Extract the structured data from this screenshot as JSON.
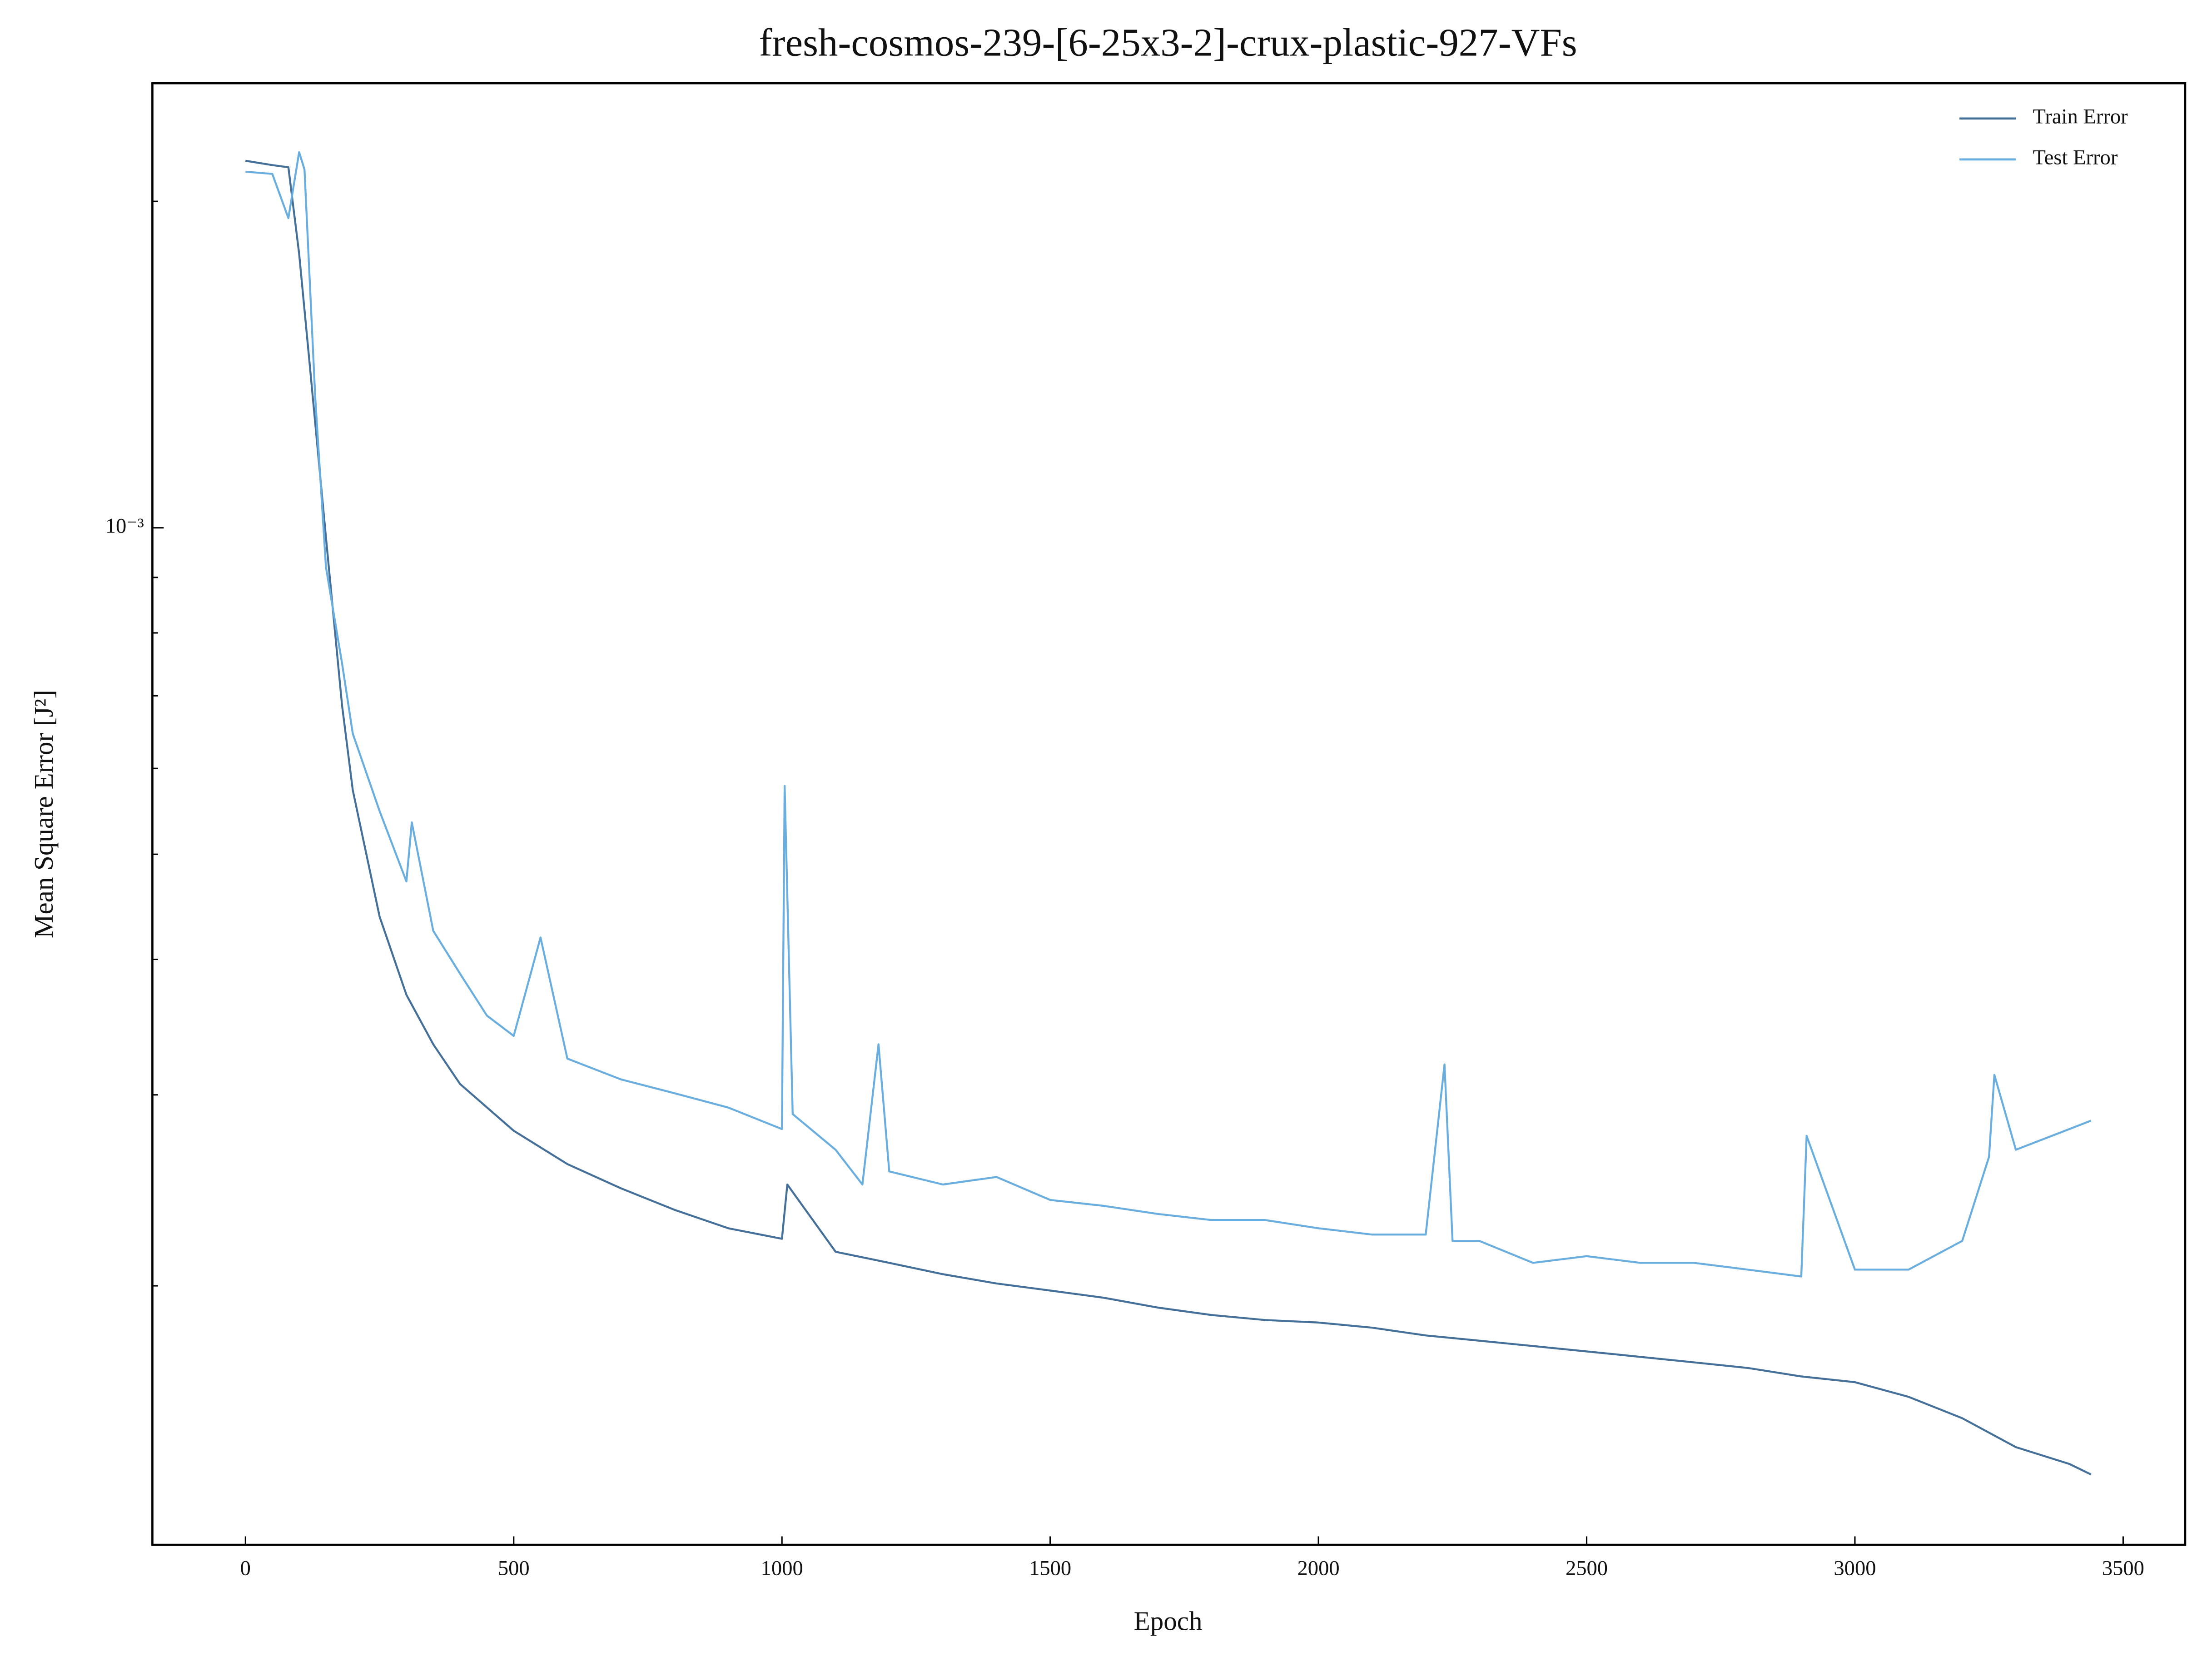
{
  "chart_data": {
    "type": "line",
    "title": "fresh-cosmos-239-[6-25x3-2]-crux-plastic-927-VFs",
    "xlabel": "Epoch",
    "ylabel": "Mean Square Error [J²]",
    "xlim": [
      -173.5,
      3615.6
    ],
    "xticks": [
      0,
      500,
      1000,
      1500,
      2000,
      2500,
      3000,
      3500
    ],
    "ylim": [
      0.0001154,
      0.00257
    ],
    "yscale": "log",
    "yticks": [
      {
        "value": 0.001,
        "label": "10⁻³"
      }
    ],
    "yminor_ticks": [
      0.0002,
      0.0003,
      0.0004,
      0.0005,
      0.0006,
      0.0007,
      0.0008,
      0.0009,
      0.002
    ],
    "legend": "upper right",
    "series": [
      {
        "name": "Train Error",
        "color": "#44709a",
        "x": [
          0,
          50,
          80,
          100,
          120,
          150,
          180,
          200,
          250,
          300,
          350,
          400,
          500,
          600,
          700,
          800,
          900,
          1000,
          1010,
          1100,
          1200,
          1300,
          1400,
          1500,
          1600,
          1700,
          1800,
          1900,
          2000,
          2100,
          2200,
          2300,
          2400,
          2500,
          2600,
          2700,
          2800,
          2900,
          3000,
          3100,
          3200,
          3300,
          3400,
          3440
        ],
        "values": [
          0.00218,
          0.00216,
          0.00215,
          0.00179,
          0.00141,
          0.00098,
          0.000686,
          0.000573,
          0.000438,
          0.000371,
          0.000334,
          0.000307,
          0.000278,
          0.000259,
          0.000246,
          0.000235,
          0.000226,
          0.000221,
          0.000248,
          0.000215,
          0.00021,
          0.000205,
          0.000201,
          0.000198,
          0.000195,
          0.000191,
          0.000188,
          0.000186,
          0.000185,
          0.000183,
          0.00018,
          0.000178,
          0.000176,
          0.000174,
          0.000172,
          0.00017,
          0.000168,
          0.000165,
          0.000163,
          0.000158,
          0.000151,
          0.000142,
          0.000137,
          0.000134
        ]
      },
      {
        "name": "Test Error",
        "color": "#6aaee0",
        "x": [
          0,
          50,
          80,
          100,
          110,
          130,
          150,
          180,
          200,
          250,
          300,
          310,
          350,
          400,
          450,
          500,
          550,
          600,
          700,
          800,
          900,
          1000,
          1005,
          1020,
          1100,
          1150,
          1180,
          1200,
          1300,
          1400,
          1500,
          1600,
          1700,
          1800,
          1900,
          2000,
          2100,
          2200,
          2235,
          2250,
          2300,
          2400,
          2500,
          2600,
          2700,
          2800,
          2900,
          2910,
          3000,
          3100,
          3200,
          3250,
          3260,
          3300,
          3400,
          3440
        ],
        "values": [
          0.00213,
          0.00212,
          0.00193,
          0.00222,
          0.00214,
          0.00132,
          0.00092,
          0.00075,
          0.000646,
          0.000548,
          0.000472,
          0.000535,
          0.000425,
          0.000388,
          0.000355,
          0.00034,
          0.000419,
          0.000324,
          0.00031,
          0.000301,
          0.000292,
          0.000279,
          0.000578,
          0.000288,
          0.000267,
          0.000248,
          0.000334,
          0.000255,
          0.000248,
          0.000252,
          0.00024,
          0.000237,
          0.000233,
          0.00023,
          0.00023,
          0.000226,
          0.000223,
          0.000223,
          0.00032,
          0.00022,
          0.00022,
          0.00021,
          0.000213,
          0.00021,
          0.00021,
          0.000207,
          0.000204,
          0.000275,
          0.000207,
          0.000207,
          0.00022,
          0.000263,
          0.000313,
          0.000267,
          0.000279,
          0.000284
        ]
      }
    ]
  }
}
